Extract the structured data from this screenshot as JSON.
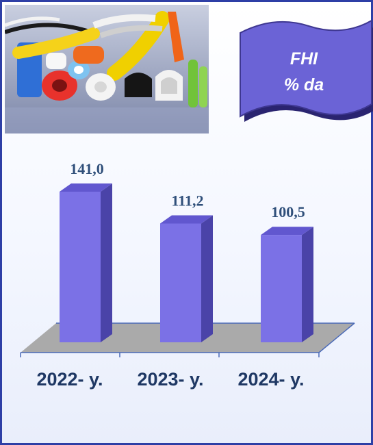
{
  "header_badge": {
    "line1": "FHI",
    "line2": "% da"
  },
  "colors": {
    "bar_front": "#7b71e6",
    "bar_side": "#4a43a8",
    "bar_top": "#6157cf",
    "floor": "#aaaaaa",
    "badge": "#6b63d6",
    "frame": "#2e3fa6"
  },
  "chart_data": {
    "type": "bar",
    "categories": [
      "2022- y.",
      "2023- y.",
      "2024- y."
    ],
    "values": [
      141.0,
      111.2,
      100.5
    ],
    "value_labels": [
      "141,0",
      "111,2",
      "100,5"
    ],
    "title": "",
    "xlabel": "",
    "ylabel": "",
    "ylim": [
      0,
      160
    ],
    "grid": false,
    "legend": "none"
  }
}
